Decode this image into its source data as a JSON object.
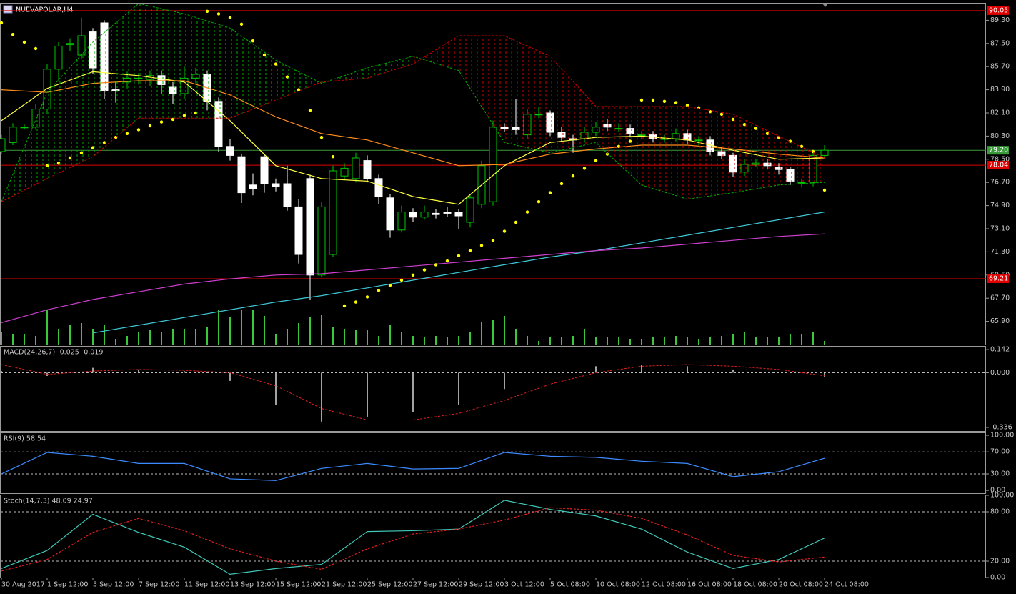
{
  "header": {
    "title": "NUEVAPOLAR,H4"
  },
  "chart_data": [
    {
      "type": "candlestick",
      "categories": [
        "30 Aug 2017",
        null,
        null,
        null,
        "1 Sep 12:00",
        null,
        null,
        null,
        "5 Sep 12:00",
        null,
        null,
        null,
        "7 Sep 12:00",
        null,
        null,
        null,
        "11 Sep 12:00",
        null,
        null,
        null,
        "13 Sep 12:00",
        null,
        null,
        null,
        "15 Sep 12:00",
        null,
        null,
        null,
        "21 Sep 12:00",
        null,
        null,
        null,
        "25 Sep 12:00",
        null,
        null,
        null,
        "27 Sep 12:00",
        null,
        null,
        null,
        "29 Sep 12:00",
        null,
        null,
        null,
        "3 Oct 12:00",
        null,
        null,
        null,
        "5 Oct 08:00",
        null,
        null,
        null,
        "10 Oct 08:00",
        null,
        null,
        null,
        "12 Oct 08:00",
        null,
        null,
        null,
        "16 Oct 08:00",
        null,
        null,
        null,
        "18 Oct 08:00",
        null,
        null,
        null,
        "20 Oct 08:00",
        null,
        null,
        null,
        "24 Oct 08:00"
      ],
      "open": [
        79.1,
        79.8,
        81.0,
        81.0,
        82.4,
        85.5,
        87.4,
        86.6,
        88.4,
        89.1,
        83.9,
        84.5,
        84.8,
        84.7,
        85.0,
        84.1,
        83.6,
        84.8,
        85.1,
        83.0,
        79.5,
        78.7,
        76.5,
        78.7,
        76.6,
        76.6,
        74.8,
        77.0,
        69.5,
        71.1,
        77.2,
        77.0,
        78.4,
        77.0,
        75.5,
        73.0,
        74.4,
        74.0,
        74.3,
        74.4,
        74.4,
        73.6,
        75.0,
        75.2,
        81.0,
        81.0,
        80.4,
        82.0,
        82.1,
        80.6,
        80.1,
        80.1,
        80.6,
        81.2,
        80.9,
        80.9,
        80.4,
        80.4,
        80.1,
        80.1,
        80.5,
        80.0,
        80.0,
        79.1,
        78.8,
        77.5,
        78.1,
        78.2,
        77.9,
        77.7,
        76.7,
        76.7,
        78.8
      ],
      "high": [
        80.4,
        81.3,
        81.2,
        82.8,
        85.9,
        87.6,
        87.9,
        89.5,
        88.7,
        89.3,
        84.5,
        85.3,
        85.2,
        85.4,
        85.4,
        84.5,
        85.7,
        85.6,
        85.4,
        83.3,
        80.1,
        78.9,
        77.4,
        78.9,
        77.0,
        78.0,
        75.4,
        77.3,
        75.2,
        78.0,
        78.2,
        79.0,
        78.8,
        77.3,
        75.8,
        74.9,
        74.7,
        74.9,
        74.6,
        74.8,
        74.6,
        75.8,
        78.4,
        81.5,
        81.3,
        83.2,
        82.4,
        82.6,
        82.3,
        81.0,
        80.4,
        81.0,
        81.4,
        81.6,
        81.3,
        81.2,
        80.7,
        80.7,
        80.4,
        80.9,
        80.8,
        80.3,
        80.3,
        79.4,
        79.0,
        78.5,
        78.5,
        78.5,
        78.2,
        77.9,
        77.0,
        79.0,
        79.6
      ],
      "low": [
        78.9,
        79.6,
        80.8,
        80.8,
        82.0,
        84.6,
        86.9,
        86.3,
        85.1,
        83.2,
        82.9,
        84.0,
        84.3,
        84.2,
        83.6,
        82.8,
        83.2,
        84.4,
        82.3,
        79.1,
        78.4,
        75.1,
        75.7,
        75.9,
        76.0,
        74.5,
        70.4,
        67.6,
        69.3,
        70.9,
        76.9,
        76.7,
        76.7,
        75.0,
        72.4,
        72.8,
        73.6,
        73.8,
        73.9,
        74.0,
        73.1,
        73.2,
        74.7,
        74.9,
        80.6,
        80.4,
        80.1,
        81.7,
        80.3,
        79.9,
        79.0,
        79.8,
        80.3,
        80.7,
        80.6,
        80.2,
        80.1,
        79.8,
        79.8,
        79.9,
        79.7,
        79.6,
        78.8,
        78.5,
        77.1,
        77.2,
        77.9,
        77.7,
        77.3,
        76.5,
        76.3,
        76.4,
        78.6
      ],
      "close": [
        80.1,
        81.0,
        81.0,
        82.4,
        85.5,
        87.3,
        87.5,
        88.1,
        85.6,
        83.8,
        83.8,
        84.8,
        84.8,
        85.0,
        84.3,
        83.6,
        84.8,
        85.1,
        83.0,
        79.5,
        78.8,
        75.9,
        76.2,
        76.6,
        76.4,
        74.8,
        71.1,
        69.5,
        74.8,
        77.6,
        77.8,
        78.6,
        77.0,
        75.6,
        73.0,
        74.4,
        74.0,
        74.4,
        74.2,
        74.3,
        74.1,
        75.5,
        78.0,
        81.0,
        80.9,
        80.8,
        82.0,
        82.0,
        80.6,
        80.2,
        80.0,
        80.6,
        81.0,
        81.0,
        80.9,
        80.5,
        80.4,
        80.1,
        80.1,
        80.5,
        80.0,
        80.0,
        79.1,
        78.8,
        77.5,
        78.1,
        78.2,
        78.0,
        77.7,
        76.8,
        76.7,
        78.8,
        79.2
      ],
      "sar": [
        89.1,
        88.2,
        87.6,
        87.1,
        78.0,
        78.2,
        78.6,
        79.0,
        79.4,
        79.8,
        80.2,
        80.5,
        80.8,
        81.1,
        81.4,
        81.6,
        81.9,
        82.1,
        90.0,
        89.8,
        89.5,
        89.0,
        87.7,
        86.6,
        85.9,
        84.9,
        83.9,
        82.3,
        80.2,
        78.7,
        67.1,
        67.4,
        67.8,
        68.3,
        68.7,
        69.1,
        69.5,
        69.9,
        70.3,
        70.6,
        71.0,
        71.4,
        71.8,
        72.2,
        72.9,
        73.6,
        74.4,
        75.2,
        75.9,
        76.6,
        77.2,
        77.8,
        78.4,
        78.9,
        79.5,
        79.9,
        83.1,
        83.1,
        83.0,
        82.9,
        82.7,
        82.5,
        82.2,
        82.0,
        81.6,
        81.2,
        80.9,
        80.5,
        80.2,
        79.9,
        79.5,
        79.1,
        76.1
      ],
      "volume": [
        18,
        15,
        15,
        12,
        48,
        22,
        28,
        30,
        22,
        28,
        8,
        12,
        18,
        20,
        18,
        22,
        22,
        22,
        25,
        48,
        38,
        48,
        48,
        40,
        15,
        22,
        30,
        38,
        42,
        25,
        22,
        20,
        20,
        12,
        28,
        18,
        12,
        10,
        12,
        10,
        12,
        18,
        32,
        35,
        40,
        22,
        12,
        5,
        10,
        10,
        12,
        22,
        10,
        10,
        10,
        8,
        8,
        10,
        10,
        12,
        10,
        8,
        10,
        12,
        15,
        18,
        10,
        10,
        10,
        15,
        15,
        18,
        5
      ],
      "up_color": "#00c800",
      "down_color": "#ffffff",
      "sar_color": "#ffff00",
      "volume_color": "#3cc83c",
      "ylim": [
        64.1,
        90.6
      ],
      "yticks": [
        {
          "value": 89.3,
          "label": "89.30"
        },
        {
          "value": 87.5,
          "label": "87.50"
        },
        {
          "value": 85.7,
          "label": "85.70"
        },
        {
          "value": 83.9,
          "label": "83.90"
        },
        {
          "value": 82.1,
          "label": "82.10"
        },
        {
          "value": 80.3,
          "label": "80.30"
        },
        {
          "value": 78.5,
          "label": "78.50"
        },
        {
          "value": 76.7,
          "label": "76.70"
        },
        {
          "value": 74.9,
          "label": "74.90"
        },
        {
          "value": 73.1,
          "label": "73.10"
        },
        {
          "value": 71.3,
          "label": "71.30"
        },
        {
          "value": 69.5,
          "label": "69.50"
        },
        {
          "value": 67.7,
          "label": "67.70"
        },
        {
          "value": 65.9,
          "label": "65.90"
        }
      ],
      "levels": [
        {
          "value": 90.05,
          "color": "#e00000"
        },
        {
          "value": 79.2,
          "label": "79.20",
          "color": "#3a9a3a"
        },
        {
          "value": 78.04,
          "color": "#e00000"
        },
        {
          "value": 69.21,
          "color": "#e00000"
        }
      ]
    },
    {
      "type": "line",
      "categories": [
        "30 Aug 2017",
        "1 Sep 12:00",
        "5 Sep 12:00",
        "7 Sep 12:00",
        "11 Sep 12:00",
        "13 Sep 12:00",
        "15 Sep 12:00",
        "21 Sep 12:00",
        "25 Sep 12:00",
        "27 Sep 12:00",
        "29 Sep 12:00",
        "3 Oct 12:00",
        "5 Oct 08:00",
        "10 Oct 08:00",
        "12 Oct 08:00",
        "16 Oct 08:00",
        "18 Oct 08:00",
        "20 Oct 08:00",
        "24 Oct 08:00"
      ],
      "ylim": [
        64.1,
        90.6
      ],
      "series": [
        {
          "color": "#ffff40",
          "values": [
            81.5,
            84.0,
            85.3,
            85.0,
            84.5,
            81.5,
            78.0,
            77.0,
            76.8,
            75.6,
            75.0,
            78.0,
            79.8,
            80.2,
            80.3,
            80.0,
            79.2,
            78.5,
            78.6
          ]
        },
        {
          "color": "#ff8c1a",
          "values": [
            83.9,
            83.7,
            84.4,
            84.6,
            84.6,
            83.5,
            81.8,
            80.5,
            80.0,
            79.0,
            78.0,
            78.1,
            78.9,
            79.3,
            79.6,
            79.6,
            79.3,
            78.9,
            78.6
          ]
        },
        {
          "color": "#40c8d8",
          "values": [
            null,
            null,
            65.0,
            65.6,
            66.2,
            66.8,
            67.4,
            67.9,
            68.5,
            69.1,
            69.7,
            70.3,
            70.9,
            71.4,
            72.0,
            72.6,
            73.2,
            73.8,
            74.4
          ]
        },
        {
          "color": "#d040d0",
          "values": [
            65.8,
            66.8,
            67.6,
            68.2,
            68.8,
            69.2,
            69.5,
            69.6,
            69.9,
            70.2,
            70.5,
            70.8,
            71.1,
            71.4,
            71.6,
            71.9,
            72.2,
            72.5,
            72.7
          ]
        }
      ]
    },
    {
      "type": "cloud",
      "categories": [
        "30 Aug 2017",
        "1 Sep 12:00",
        "5 Sep 12:00",
        "7 Sep 12:00",
        "11 Sep 12:00",
        "13 Sep 12:00",
        "15 Sep 12:00",
        "21 Sep 12:00",
        "25 Sep 12:00",
        "27 Sep 12:00",
        "29 Sep 12:00",
        "3 Oct 12:00",
        "5 Oct 08:00",
        "10 Oct 08:00",
        "12 Oct 08:00",
        "16 Oct 08:00",
        "18 Oct 08:00",
        "20 Oct 08:00",
        "24 Oct 08:00"
      ],
      "ylim": [
        64.1,
        90.6
      ],
      "span_a": [
        75.2,
        83.7,
        87.6,
        90.6,
        89.8,
        88.7,
        86.2,
        84.4,
        85.6,
        86.5,
        85.4,
        79.8,
        79.0,
        79.8,
        76.5,
        75.4,
        75.9,
        76.5,
        76.7
      ],
      "span_b": [
        75.2,
        77.0,
        78.7,
        81.7,
        81.7,
        81.7,
        83.1,
        84.5,
        84.8,
        85.9,
        88.1,
        88.1,
        86.5,
        82.6,
        82.6,
        82.6,
        82.0,
        80.3,
        78.6
      ],
      "a_color": "#00b000",
      "b_color": "#d00000"
    },
    {
      "type": "macd",
      "title": "MACD(24,26,7) -0.025 -0.019",
      "categories": [
        "30 Aug 2017",
        "1 Sep 12:00",
        "5 Sep 12:00",
        "7 Sep 12:00",
        "11 Sep 12:00",
        "13 Sep 12:00",
        "15 Sep 12:00",
        "21 Sep 12:00",
        "25 Sep 12:00",
        "27 Sep 12:00",
        "29 Sep 12:00",
        "3 Oct 12:00",
        "5 Oct 08:00",
        "10 Oct 08:00",
        "12 Oct 08:00",
        "16 Oct 08:00",
        "18 Oct 08:00",
        "20 Oct 08:00",
        "24 Oct 08:00"
      ],
      "values": [
        0.01,
        -0.02,
        0.03,
        0.02,
        0.01,
        -0.05,
        -0.2,
        -0.3,
        -0.27,
        -0.24,
        -0.2,
        -0.1,
        0.0,
        0.04,
        0.05,
        0.04,
        0.02,
        0.0,
        -0.025
      ],
      "signal": [
        0.05,
        -0.01,
        0.01,
        0.02,
        0.015,
        0.0,
        -0.08,
        -0.22,
        -0.29,
        -0.29,
        -0.25,
        -0.17,
        -0.07,
        0.0,
        0.04,
        0.05,
        0.04,
        0.02,
        -0.019
      ],
      "color": "#d8d8d8",
      "signal_color": "#e02020",
      "ylim": [
        -0.358,
        0.16
      ],
      "yticks": [
        0.142,
        {
          "value": 0,
          "label": "0.000"
        },
        -0.336
      ],
      "levels": [
        0
      ]
    },
    {
      "type": "line",
      "title": "RSI(9) 58.54",
      "categories": [
        "30 Aug 2017",
        "1 Sep 12:00",
        "5 Sep 12:00",
        "7 Sep 12:00",
        "11 Sep 12:00",
        "13 Sep 12:00",
        "15 Sep 12:00",
        "21 Sep 12:00",
        "25 Sep 12:00",
        "27 Sep 12:00",
        "29 Sep 12:00",
        "3 Oct 12:00",
        "5 Oct 08:00",
        "10 Oct 08:00",
        "12 Oct 08:00",
        "16 Oct 08:00",
        "18 Oct 08:00",
        "20 Oct 08:00",
        "24 Oct 08:00"
      ],
      "series": [
        {
          "color": "#3c8cff",
          "values": [
            30,
            69,
            62,
            49,
            49,
            21,
            18,
            40,
            49,
            39,
            40,
            69,
            62,
            60,
            53,
            49,
            25,
            34,
            58.54
          ]
        }
      ],
      "ylim": [
        -5,
        104
      ],
      "yticks": [
        {
          "value": 100,
          "label": "100.00"
        },
        {
          "value": 70,
          "label": "70.00"
        },
        {
          "value": 30,
          "label": "30.00"
        },
        {
          "value": 0,
          "label": "0.00"
        }
      ],
      "levels": [
        70,
        30
      ]
    },
    {
      "type": "line",
      "title": "Stoch(14,7,3) 48.09 24.97",
      "categories": [
        "30 Aug 2017",
        "1 Sep 12:00",
        "5 Sep 12:00",
        "7 Sep 12:00",
        "11 Sep 12:00",
        "13 Sep 12:00",
        "15 Sep 12:00",
        "21 Sep 12:00",
        "25 Sep 12:00",
        "27 Sep 12:00",
        "29 Sep 12:00",
        "3 Oct 12:00",
        "5 Oct 08:00",
        "10 Oct 08:00",
        "12 Oct 08:00",
        "16 Oct 08:00",
        "18 Oct 08:00",
        "20 Oct 08:00",
        "24 Oct 08:00"
      ],
      "series": [
        {
          "color": "#40c8b8",
          "values": [
            11,
            33,
            77,
            55,
            37,
            4,
            11,
            16,
            56,
            57,
            59,
            94,
            83,
            75,
            59,
            31,
            11,
            22,
            48.09
          ]
        },
        {
          "color": "#e02020",
          "dashed": true,
          "values": [
            8,
            22,
            55,
            72,
            57,
            35,
            20,
            10,
            35,
            53,
            59,
            70,
            85,
            82,
            72,
            52,
            27,
            19,
            24.97
          ]
        }
      ],
      "ylim": [
        0,
        100
      ],
      "yticks": [
        {
          "value": 100,
          "label": "100.00"
        },
        {
          "value": 80,
          "label": "80.00"
        },
        {
          "value": 20,
          "label": "20.00"
        },
        {
          "value": 0,
          "label": "0.00"
        }
      ],
      "levels": [
        80,
        20
      ]
    }
  ]
}
